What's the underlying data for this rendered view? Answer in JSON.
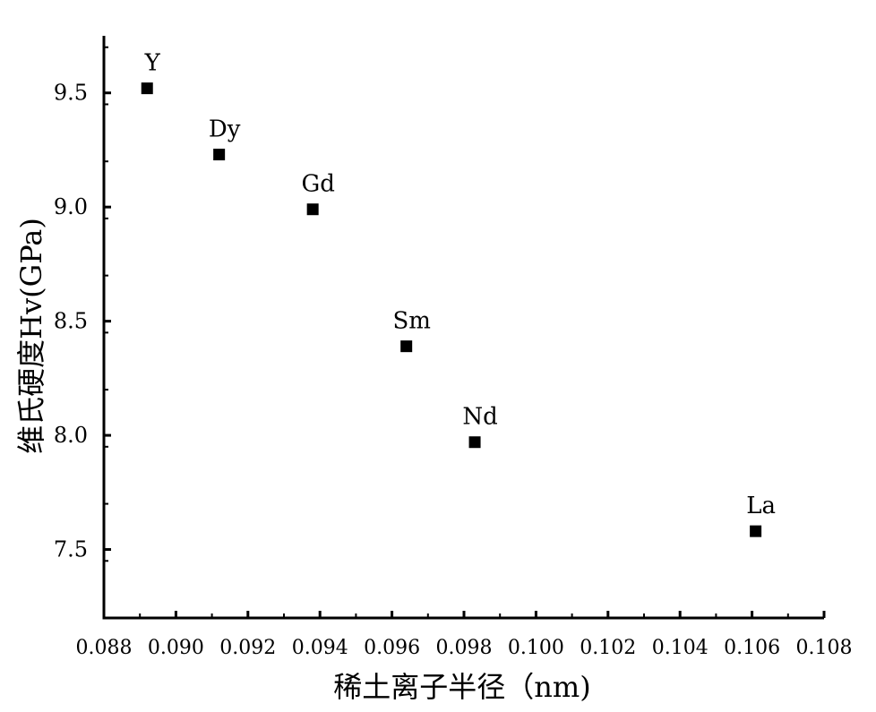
{
  "chart_data": {
    "type": "scatter",
    "title": "",
    "xlabel": "稀土离子半径（nm)",
    "ylabel": "维氏硬度Hv(GPa)",
    "xlim": [
      0.088,
      0.108
    ],
    "ylim": [
      7.2,
      9.75
    ],
    "xticks": [
      "0.088",
      "0.090",
      "0.092",
      "0.094",
      "0.096",
      "0.098",
      "0.100",
      "0.102",
      "0.104",
      "0.106",
      "0.108"
    ],
    "yticks": [
      "7.5",
      "8.0",
      "8.5",
      "9.0",
      "9.5"
    ],
    "grid": false,
    "marker_color": "#000000",
    "points": [
      {
        "label": "Y",
        "x": 0.0892,
        "y": 9.52
      },
      {
        "label": "Dy",
        "x": 0.0912,
        "y": 9.23
      },
      {
        "label": "Gd",
        "x": 0.0938,
        "y": 8.99
      },
      {
        "label": "Sm",
        "x": 0.0964,
        "y": 8.39
      },
      {
        "label": "Nd",
        "x": 0.0983,
        "y": 7.97
      },
      {
        "label": "La",
        "x": 0.1061,
        "y": 7.58
      }
    ]
  }
}
